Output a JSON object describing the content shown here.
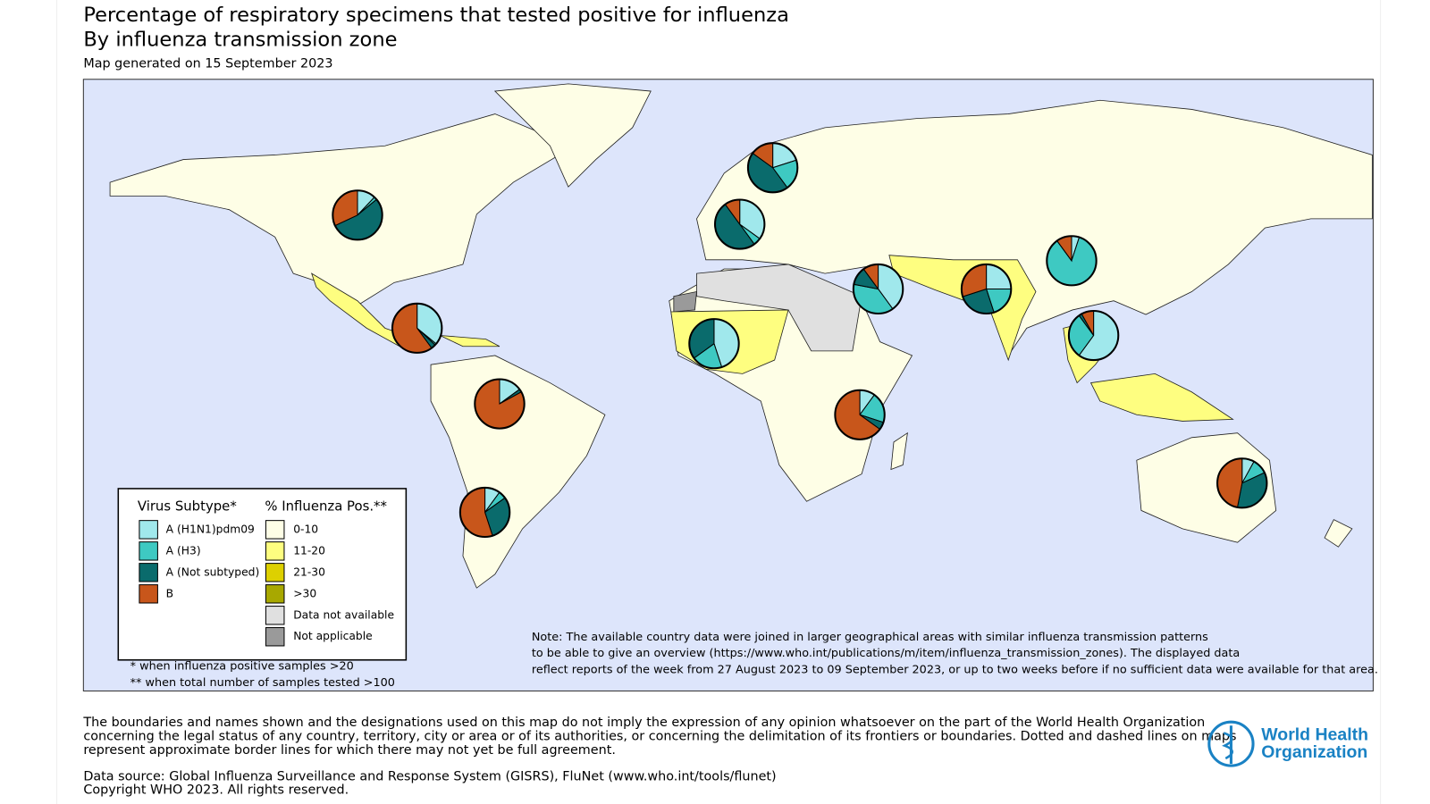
{
  "header": {
    "title": "Percentage of respiratory specimens that tested positive for influenza",
    "subtitle": "By influenza transmission zone",
    "generated": "Map generated on 15 September 2023"
  },
  "legend": {
    "subtype_title": "Virus Subtype*",
    "subtypes": [
      {
        "label": "A (H1N1)pdm09",
        "color": "#a0e8ec"
      },
      {
        "label": "A (H3)",
        "color": "#3ec9c2"
      },
      {
        "label": "A (Not subtyped)",
        "color": "#0a6b6c"
      },
      {
        "label": "B",
        "color": "#c8561b"
      }
    ],
    "positivity_title": "% Influenza Pos.**",
    "positivity": [
      {
        "label": "0-10",
        "color": "#fefee6"
      },
      {
        "label": "11-20",
        "color": "#fefe80"
      },
      {
        "label": "21-30",
        "color": "#ddd000"
      },
      {
        "label": ">30",
        "color": "#a8a800"
      },
      {
        "label": "Data not available",
        "color": "#e0e0e0"
      },
      {
        "label": "Not applicable",
        "color": "#9a9a9a"
      }
    ],
    "footnotes": [
      "* when influenza positive samples >20",
      "** when total number of samples tested >100"
    ]
  },
  "pies": [
    {
      "values": [
        12,
        2,
        54,
        32
      ]
    },
    {
      "values": [
        36,
        1,
        3,
        60
      ]
    },
    {
      "values": [
        15,
        0,
        2,
        83
      ]
    },
    {
      "values": [
        10,
        5,
        30,
        55
      ]
    },
    {
      "values": [
        20,
        20,
        45,
        15
      ]
    },
    {
      "values": [
        35,
        5,
        50,
        10
      ]
    },
    {
      "values": [
        45,
        20,
        35,
        0
      ]
    },
    {
      "values": [
        40,
        38,
        12,
        10
      ]
    },
    {
      "values": [
        25,
        20,
        25,
        30
      ]
    },
    {
      "values": [
        5,
        85,
        0,
        10
      ]
    },
    {
      "values": [
        60,
        30,
        2,
        8
      ]
    },
    {
      "values": [
        10,
        20,
        5,
        65
      ]
    },
    {
      "values": [
        8,
        10,
        35,
        47
      ]
    }
  ],
  "note": [
    "Note: The available country data were joined in larger geographical areas with similar influenza transmission patterns",
    "to be able to give an overview (https://www.who.int/publications/m/item/influenza_transmission_zones). The displayed data",
    "reflect reports of the week from 27 August 2023 to 09 September 2023, or up to two weeks before if no sufficient data were available for that area."
  ],
  "disclaimer": [
    "The boundaries and names shown and the designations used on this map do not imply the expression of any opinion whatsoever on the part of the World Health Organization",
    "concerning the legal status of any country, territory, city or area or of its authorities, or concerning the delimitation of its frontiers or boundaries. Dotted and dashed lines on maps",
    "represent approximate border lines for which there may not yet be full agreement."
  ],
  "source": [
    "Data source: Global Influenza Surveillance and Response System (GISRS), FluNet (www.who.int/tools/flunet)",
    "Copyright WHO 2023. All rights reserved."
  ],
  "logo": [
    "World Health",
    "Organization"
  ]
}
